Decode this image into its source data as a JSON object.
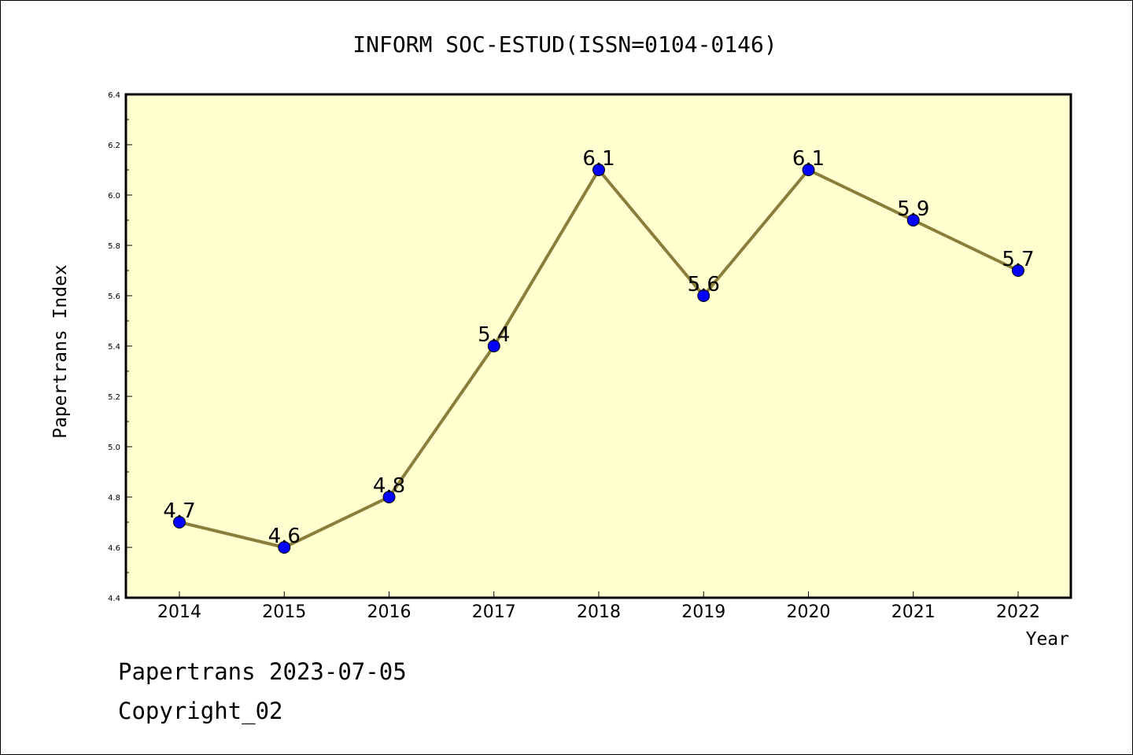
{
  "chart_data": {
    "type": "line",
    "title": "INFORM SOC-ESTUD(ISSN=0104-0146)",
    "xlabel": "Year",
    "ylabel": "Papertrans Index",
    "categories": [
      "2014",
      "2015",
      "2016",
      "2017",
      "2018",
      "2019",
      "2020",
      "2021",
      "2022"
    ],
    "values": [
      4.7,
      4.6,
      4.8,
      5.4,
      6.1,
      5.6,
      6.1,
      5.9,
      5.7
    ],
    "data_labels": [
      "4.7",
      "4.6",
      "4.8",
      "5.4",
      "6.1",
      "5.6",
      "6.1",
      "5.9",
      "5.7"
    ],
    "ylim": [
      4.4,
      6.4
    ],
    "y_ticks": [
      "4.4",
      "4.6",
      "4.8",
      "5.0",
      "5.2",
      "5.4",
      "5.6",
      "5.8",
      "6.0",
      "6.2",
      "6.4"
    ],
    "grid": false,
    "colors": {
      "plot_background": "#ffffd0",
      "line": "#8b7d3a",
      "marker": "#0000ff",
      "marker_edge": "#000000",
      "axis": "#000000"
    }
  },
  "footer": {
    "line1": "Papertrans 2023-07-05",
    "line2": "Copyright_02"
  }
}
